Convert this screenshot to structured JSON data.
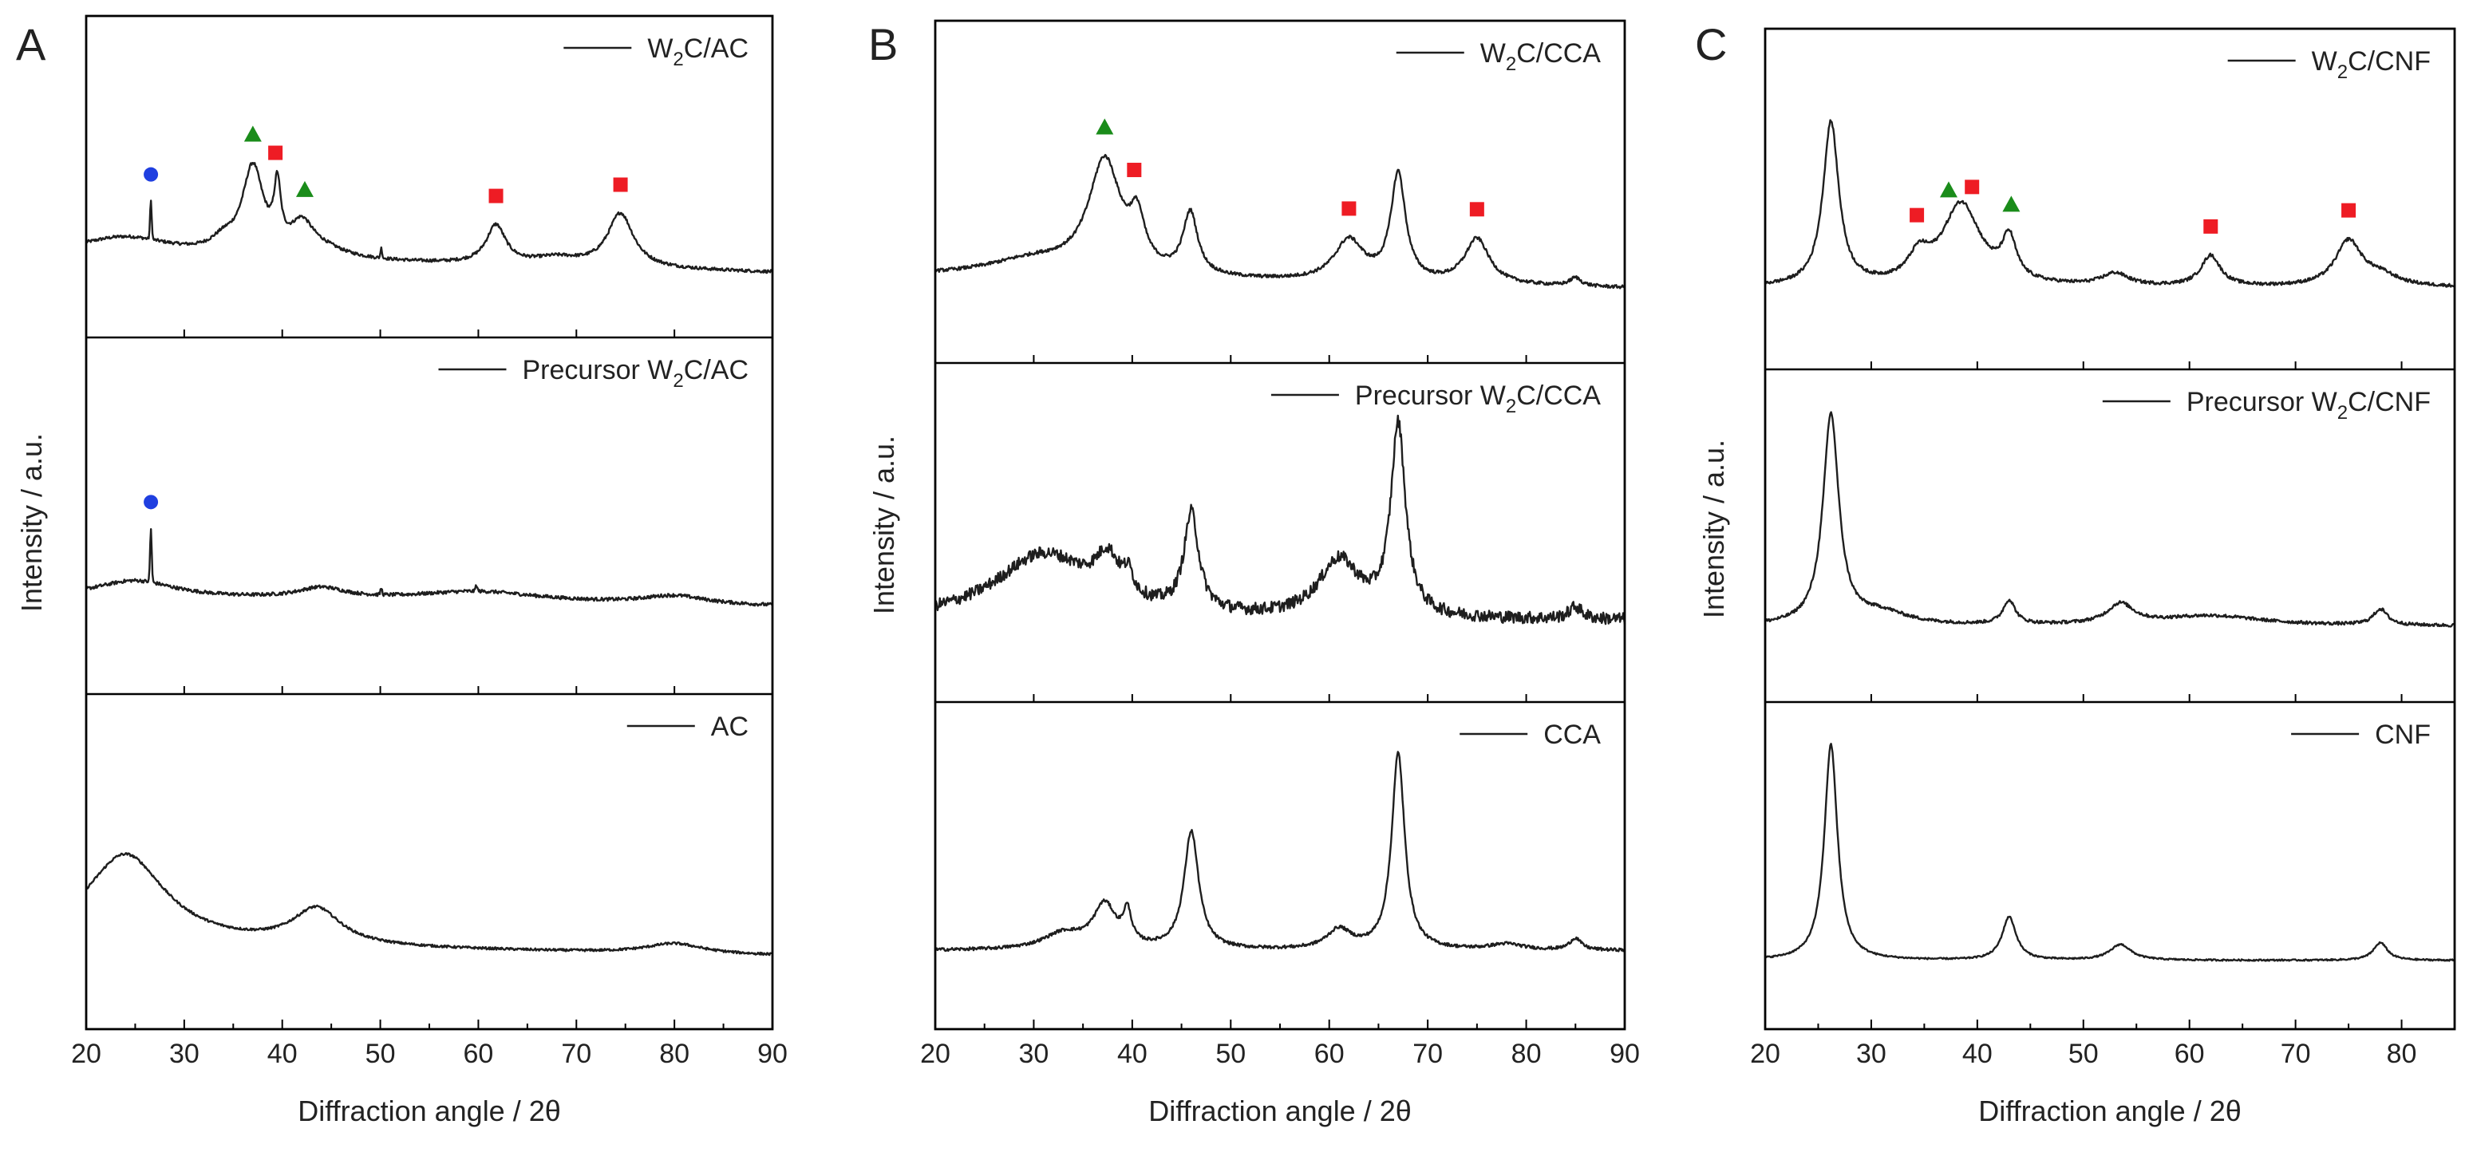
{
  "figure": {
    "xlabel": "Diffraction angle / 2θ",
    "ylabel": "Intensity / a.u."
  },
  "colors": {
    "square": "#ee1c24",
    "triangle": "#1a8c1a",
    "circle": "#1f3fe0",
    "trace": "#1e1e1e",
    "frame": "#000000"
  },
  "chart_data": [
    {
      "panel": "A",
      "type": "line",
      "xlim": [
        20,
        90
      ],
      "xticks": [
        20,
        30,
        40,
        50,
        60,
        70,
        80,
        90
      ],
      "xlabel": "Diffraction angle / 2θ",
      "ylabel": "Intensity / a.u.",
      "subplots": [
        {
          "legend": {
            "pre": "W",
            "sub": "2",
            "post": "C/AC"
          },
          "baseline": 0.12,
          "slope": 0.0012,
          "noise": 0.008,
          "bumps": [
            [
              24,
              0.1,
              6
            ],
            [
              37,
              0.45,
              1.3
            ],
            [
              39.5,
              0.3,
              0.4
            ],
            [
              42,
              0.15,
              1.4
            ],
            [
              34,
              0.06,
              1.5
            ],
            [
              44,
              0.05,
              3
            ],
            [
              61.8,
              0.2,
              1.2
            ],
            [
              74.5,
              0.28,
              1.6
            ],
            [
              68,
              0.04,
              3
            ]
          ],
          "spikes": [
            [
              26.6,
              0.2
            ],
            [
              50.1,
              0.05
            ]
          ],
          "markers": [
            [
              "circle",
              26.6
            ],
            [
              "triangle",
              37
            ],
            [
              "square",
              39.3
            ],
            [
              "triangle",
              42.3
            ],
            [
              "square",
              61.8
            ],
            [
              "square",
              74.5
            ]
          ]
        },
        {
          "legend": {
            "pre": "Precursor W",
            "sub": "2",
            "post": "C/AC"
          },
          "baseline": 0.15,
          "slope": 0.0006,
          "noise": 0.008,
          "bumps": [
            [
              25,
              0.08,
              5
            ],
            [
              44,
              0.05,
              3
            ],
            [
              60,
              0.05,
              8
            ],
            [
              80,
              0.04,
              4
            ]
          ],
          "spikes": [
            [
              26.6,
              0.25
            ],
            [
              50.1,
              0.03
            ],
            [
              59.8,
              0.03
            ]
          ],
          "markers": [
            [
              "circle",
              26.6
            ]
          ]
        },
        {
          "legend": {
            "pre": "",
            "sub": "",
            "post": "AC"
          },
          "baseline": 0.12,
          "slope": 0.0008,
          "noise": 0.006,
          "bumps": [
            [
              24,
              0.45,
              5
            ],
            [
              43.5,
              0.18,
              3
            ],
            [
              80,
              0.05,
              3.5
            ]
          ],
          "spikes": [],
          "markers": []
        }
      ]
    },
    {
      "panel": "B",
      "type": "line",
      "xlim": [
        20,
        90
      ],
      "xticks": [
        20,
        30,
        40,
        50,
        60,
        70,
        80,
        90
      ],
      "xlabel": "Diffraction angle / 2θ",
      "ylabel": "Intensity / a.u.",
      "subplots": [
        {
          "legend": {
            "pre": "W",
            "sub": "2",
            "post": "C/CCA"
          },
          "baseline": 0.12,
          "slope": 0.0008,
          "noise": 0.008,
          "bumps": [
            [
              30,
              0.08,
              6
            ],
            [
              37.2,
              0.55,
              2
            ],
            [
              40.5,
              0.22,
              0.9
            ],
            [
              45.9,
              0.3,
              0.9
            ],
            [
              62,
              0.2,
              1.8
            ],
            [
              67,
              0.52,
              0.9
            ],
            [
              75,
              0.22,
              1.5
            ],
            [
              85,
              0.04,
              0.7
            ]
          ],
          "spikes": [],
          "markers": [
            [
              "triangle",
              37.2
            ],
            [
              "square",
              40.2
            ],
            [
              "square",
              62
            ],
            [
              "square",
              75
            ]
          ]
        },
        {
          "legend": {
            "pre": "Precursor W",
            "sub": "2",
            "post": "C/CCA"
          },
          "baseline": 0.1,
          "slope": 0.0,
          "noise": 0.03,
          "bumps": [
            [
              31,
              0.32,
              6
            ],
            [
              37.5,
              0.2,
              1.5
            ],
            [
              39.6,
              0.1,
              0.6
            ],
            [
              46,
              0.48,
              0.9
            ],
            [
              61,
              0.28,
              2.5
            ],
            [
              67,
              0.93,
              0.9
            ],
            [
              85,
              0.06,
              0.8
            ]
          ],
          "spikes": [],
          "markers": []
        },
        {
          "legend": {
            "pre": "",
            "sub": "",
            "post": "CCA"
          },
          "baseline": 0.1,
          "slope": 0.0,
          "noise": 0.008,
          "bumps": [
            [
              33,
              0.08,
              2.5
            ],
            [
              37.2,
              0.22,
              1.4
            ],
            [
              39.5,
              0.16,
              0.5
            ],
            [
              46,
              0.6,
              0.9
            ],
            [
              61,
              0.1,
              1.5
            ],
            [
              67,
              1.0,
              0.8
            ],
            [
              78,
              0.03,
              2
            ],
            [
              85,
              0.06,
              0.7
            ]
          ],
          "spikes": [],
          "markers": []
        }
      ]
    },
    {
      "panel": "C",
      "type": "line",
      "xlim": [
        20,
        85
      ],
      "xticks": [
        20,
        30,
        40,
        50,
        60,
        70,
        80
      ],
      "xlabel": "Diffraction angle / 2θ",
      "ylabel": "Intensity / a.u.",
      "subplots": [
        {
          "legend": {
            "pre": "W",
            "sub": "2",
            "post": "C/CNF"
          },
          "baseline": 0.1,
          "slope": 0.0,
          "noise": 0.008,
          "bumps": [
            [
              26.2,
              0.8,
              0.9
            ],
            [
              34.5,
              0.12,
              1.2
            ],
            [
              38.5,
              0.4,
              2.2
            ],
            [
              43,
              0.2,
              0.8
            ],
            [
              53,
              0.06,
              1.5
            ],
            [
              62,
              0.15,
              1.1
            ],
            [
              75,
              0.22,
              1.5
            ],
            [
              78,
              0.05,
              2
            ]
          ],
          "spikes": [],
          "markers": [
            [
              "square",
              34.3
            ],
            [
              "triangle",
              37.3
            ],
            [
              "square",
              39.5
            ],
            [
              "triangle",
              43.2
            ],
            [
              "square",
              62
            ],
            [
              "square",
              75
            ]
          ]
        },
        {
          "legend": {
            "pre": "Precursor W",
            "sub": "2",
            "post": "C/CNF"
          },
          "baseline": 0.08,
          "slope": 0.0,
          "noise": 0.008,
          "bumps": [
            [
              26.2,
              1.05,
              0.9
            ],
            [
              31,
              0.06,
              3
            ],
            [
              43,
              0.12,
              0.7
            ],
            [
              53.5,
              0.1,
              1.5
            ],
            [
              62,
              0.05,
              6
            ],
            [
              78,
              0.08,
              0.8
            ]
          ],
          "spikes": [],
          "markers": []
        },
        {
          "legend": {
            "pre": "",
            "sub": "",
            "post": "CNF"
          },
          "baseline": 0.05,
          "slope": 0.0,
          "noise": 0.004,
          "bumps": [
            [
              26.2,
              1.1,
              0.75
            ],
            [
              43,
              0.22,
              0.8
            ],
            [
              53.5,
              0.08,
              1.2
            ],
            [
              78,
              0.09,
              0.8
            ]
          ],
          "spikes": [],
          "markers": []
        }
      ]
    }
  ]
}
